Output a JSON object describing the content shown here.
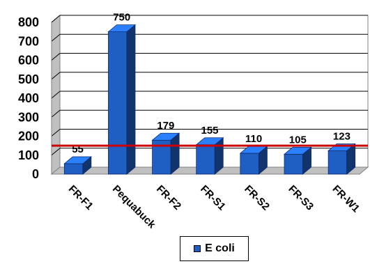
{
  "chart_data": {
    "type": "bar",
    "categories": [
      "FR-F1",
      "Pequabuck",
      "FR-F2",
      "FR-S1",
      "FR-S2",
      "FR-S3",
      "FR-W1"
    ],
    "series": [
      {
        "name": "E coli",
        "values": [
          55,
          750,
          179,
          155,
          110,
          105,
          123
        ],
        "color": "#1f5fc4"
      }
    ],
    "data_labels": [
      "55",
      "750",
      "179",
      "155",
      "110",
      "105",
      "123"
    ],
    "reference_line": {
      "value": 150,
      "color": "#cc0000"
    },
    "ylim": [
      0,
      800
    ],
    "yticks": [
      "0",
      "100",
      "200",
      "300",
      "400",
      "500",
      "600",
      "700",
      "800"
    ],
    "grid": true,
    "three_d": true,
    "legend_position": "bottom"
  },
  "legend": {
    "label": "E coli",
    "swatch_color": "#1f5fc4"
  }
}
